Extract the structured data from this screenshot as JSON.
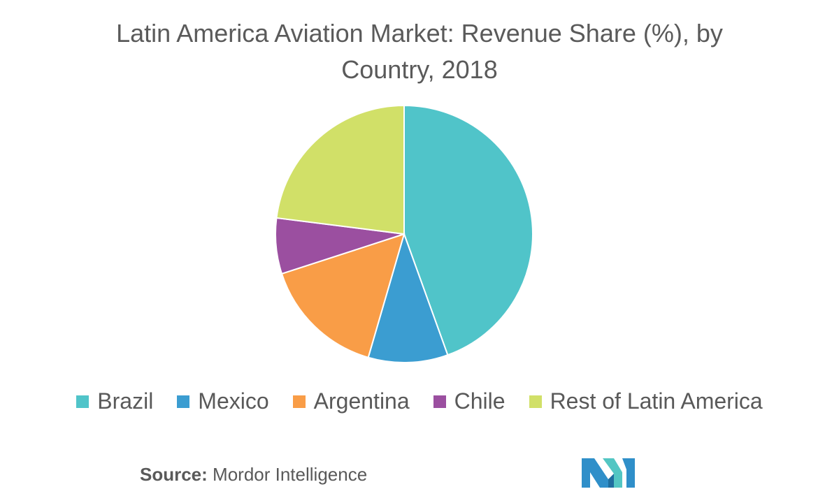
{
  "chart_data": {
    "type": "pie",
    "title": "Latin America Aviation Market: Revenue Share (%), by Country, 2018",
    "categories": [
      "Brazil",
      "Mexico",
      "Argentina",
      "Chile",
      "Rest of Latin America"
    ],
    "values": [
      44.5,
      10,
      15.5,
      7,
      23
    ],
    "unit": "%",
    "colors": [
      "#50c4c9",
      "#3b9dd1",
      "#f99d47",
      "#9b4fa0",
      "#d1e068"
    ],
    "legend_position": "bottom"
  },
  "source": {
    "label": "Source:",
    "text": "Mordor Intelligence"
  },
  "logo": {
    "icon": "mordor-intelligence-logo"
  }
}
